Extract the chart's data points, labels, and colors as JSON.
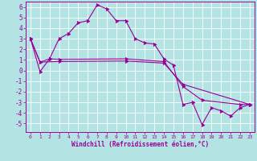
{
  "xlabel": "Windchill (Refroidissement éolien,°C)",
  "background_color": "#b3e3e3",
  "line_color": "#990099",
  "grid_color": "#ffffff",
  "xlim": [
    -0.5,
    23.5
  ],
  "ylim": [
    -5.8,
    6.5
  ],
  "yticks": [
    -5,
    -4,
    -3,
    -2,
    -1,
    0,
    1,
    2,
    3,
    4,
    5,
    6
  ],
  "xticks": [
    0,
    1,
    2,
    3,
    4,
    5,
    6,
    7,
    8,
    9,
    10,
    11,
    12,
    13,
    14,
    15,
    16,
    17,
    18,
    19,
    20,
    21,
    22,
    23
  ],
  "series1": [
    [
      0,
      3.0
    ],
    [
      1,
      -0.1
    ],
    [
      2,
      1.1
    ],
    [
      3,
      3.0
    ],
    [
      4,
      3.5
    ],
    [
      5,
      4.5
    ],
    [
      6,
      4.7
    ],
    [
      7,
      6.2
    ],
    [
      8,
      5.8
    ],
    [
      9,
      4.7
    ],
    [
      10,
      4.7
    ],
    [
      11,
      3.0
    ],
    [
      12,
      2.6
    ],
    [
      13,
      2.5
    ],
    [
      14,
      1.1
    ],
    [
      15,
      0.5
    ],
    [
      16,
      -3.2
    ],
    [
      17,
      -3.0
    ],
    [
      18,
      -5.1
    ],
    [
      19,
      -3.5
    ],
    [
      20,
      -3.8
    ],
    [
      21,
      -4.3
    ],
    [
      22,
      -3.5
    ],
    [
      23,
      -3.2
    ]
  ],
  "series2": [
    [
      0,
      3.0
    ],
    [
      1,
      0.8
    ],
    [
      2,
      1.1
    ],
    [
      3,
      1.05
    ],
    [
      10,
      1.1
    ],
    [
      14,
      0.85
    ],
    [
      16,
      -1.5
    ],
    [
      18,
      -2.8
    ],
    [
      22,
      -3.2
    ],
    [
      23,
      -3.2
    ]
  ],
  "series3": [
    [
      0,
      3.0
    ],
    [
      1,
      0.8
    ],
    [
      3,
      0.85
    ],
    [
      10,
      0.9
    ],
    [
      14,
      0.7
    ],
    [
      16,
      -1.3
    ],
    [
      23,
      -3.2
    ]
  ]
}
